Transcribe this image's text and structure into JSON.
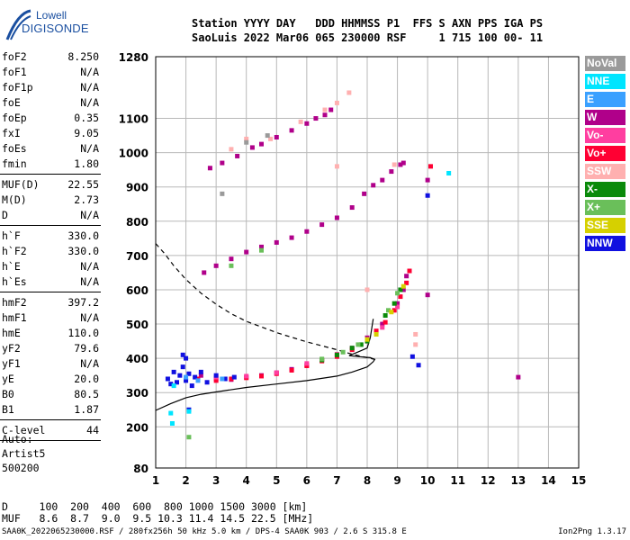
{
  "logo": {
    "line1": "Lowell",
    "line2": "DIGISONDE"
  },
  "header": {
    "line1": "Station YYYY DAY   DDD HHMMSS P1  FFS S AXN PPS IGA PS",
    "line2": "SaoLuis 2022 Mar06 065 230000 RSF     1 715 100 00- 11"
  },
  "params": [
    {
      "label": "foF2",
      "value": "8.250"
    },
    {
      "label": "foF1",
      "value": "N/A"
    },
    {
      "label": "foF1p",
      "value": "N/A"
    },
    {
      "label": "foE",
      "value": "N/A"
    },
    {
      "label": "foEp",
      "value": "0.35"
    },
    {
      "label": "fxI",
      "value": "9.05"
    },
    {
      "label": "foEs",
      "value": "N/A"
    },
    {
      "label": "fmin",
      "value": "1.80",
      "sep": true
    },
    {
      "label": "MUF(D)",
      "value": "22.55"
    },
    {
      "label": "M(D)",
      "value": "2.73"
    },
    {
      "label": "D",
      "value": "N/A",
      "sep": true
    },
    {
      "label": "h`F",
      "value": "330.0"
    },
    {
      "label": "h`F2",
      "value": "330.0"
    },
    {
      "label": "h`E",
      "value": "N/A"
    },
    {
      "label": "h`Es",
      "value": "N/A",
      "sep": true
    },
    {
      "label": "hmF2",
      "value": "397.2"
    },
    {
      "label": "hmF1",
      "value": "N/A"
    },
    {
      "label": "hmE",
      "value": "110.0"
    },
    {
      "label": "yF2",
      "value": "79.6"
    },
    {
      "label": "yF1",
      "value": "N/A"
    },
    {
      "label": "yE",
      "value": "20.0"
    },
    {
      "label": "B0",
      "value": "80.5"
    },
    {
      "label": "B1",
      "value": "1.87",
      "sep": true
    },
    {
      "label": "C-level",
      "value": "44",
      "sep": true
    }
  ],
  "auto": {
    "line1": "Auto:",
    "line2": "Artist5",
    "line3": "500200"
  },
  "bottom": {
    "d_row": "D     100  200  400  600  800 1000 1500 3000 [km]",
    "muf_row": "MUF   8.6  8.7  9.0  9.5 10.3 11.4 14.5 22.5 [MHz]"
  },
  "footer": {
    "left": "SAA0K_2022065230000.RSF / 280fx256h 50 kHz 5.0 km / DPS-4 SAA0K 903 / 2.6 S 315.8 E",
    "right": "Ion2Png 1.3.17"
  },
  "legend": [
    {
      "label": "NoVal",
      "color": "#9a9a9a"
    },
    {
      "label": "NNE",
      "color": "#00e5ff"
    },
    {
      "label": "E",
      "color": "#3aa0ff"
    },
    {
      "label": "W",
      "color": "#b0008a"
    },
    {
      "label": "Vo-",
      "color": "#ff3ea0"
    },
    {
      "label": "Vo+",
      "color": "#ff0033"
    },
    {
      "label": "SSW",
      "color": "#ffb0b0"
    },
    {
      "label": "X-",
      "color": "#0a8a0a"
    },
    {
      "label": "X+",
      "color": "#6abf5a"
    },
    {
      "label": "SSE",
      "color": "#d6d000"
    },
    {
      "label": "NNW",
      "color": "#1010e0"
    }
  ],
  "chart_data": {
    "type": "scatter",
    "xlim": [
      1,
      15
    ],
    "ylim": [
      80,
      1280
    ],
    "x_ticks": [
      1,
      2,
      3,
      4,
      5,
      6,
      7,
      8,
      9,
      10,
      11,
      12,
      13,
      14,
      15
    ],
    "y_ticks": [
      80,
      200,
      300,
      400,
      500,
      600,
      700,
      800,
      900,
      1000,
      1100,
      1280
    ],
    "grid": true,
    "series": [
      {
        "name": "W",
        "color": "#b0008a",
        "points": [
          [
            2.6,
            650
          ],
          [
            3.0,
            670
          ],
          [
            3.5,
            690
          ],
          [
            4.0,
            710
          ],
          [
            4.5,
            725
          ],
          [
            5.0,
            738
          ],
          [
            5.5,
            752
          ],
          [
            6.0,
            770
          ],
          [
            6.5,
            790
          ],
          [
            7.0,
            810
          ],
          [
            7.5,
            840
          ],
          [
            7.9,
            880
          ],
          [
            8.2,
            905
          ],
          [
            8.5,
            920
          ],
          [
            8.8,
            945
          ],
          [
            9.1,
            965
          ],
          [
            9.2,
            970
          ],
          [
            2.8,
            955
          ],
          [
            3.2,
            970
          ],
          [
            3.7,
            990
          ],
          [
            4.2,
            1015
          ],
          [
            4.5,
            1025
          ],
          [
            5.0,
            1045
          ],
          [
            5.5,
            1065
          ],
          [
            6.0,
            1085
          ],
          [
            6.3,
            1100
          ],
          [
            6.6,
            1110
          ],
          [
            6.8,
            1125
          ],
          [
            2.5,
            350
          ],
          [
            3.0,
            340
          ],
          [
            3.5,
            338
          ],
          [
            4.0,
            345
          ],
          [
            4.5,
            350
          ],
          [
            5.0,
            358
          ],
          [
            5.5,
            368
          ],
          [
            6.0,
            380
          ],
          [
            6.5,
            395
          ],
          [
            7.0,
            410
          ],
          [
            7.5,
            430
          ],
          [
            8.0,
            460
          ],
          [
            8.5,
            500
          ],
          [
            9.0,
            560
          ],
          [
            9.2,
            600
          ],
          [
            9.3,
            640
          ],
          [
            10.0,
            585
          ],
          [
            13.0,
            345
          ],
          [
            10.0,
            920
          ]
        ]
      },
      {
        "name": "Vo+",
        "color": "#ff0033",
        "points": [
          [
            2.4,
            340
          ],
          [
            3.0,
            335
          ],
          [
            3.5,
            340
          ],
          [
            4.0,
            343
          ],
          [
            4.5,
            348
          ],
          [
            5.0,
            355
          ],
          [
            5.5,
            365
          ],
          [
            6.0,
            378
          ],
          [
            6.5,
            392
          ],
          [
            7.0,
            405
          ],
          [
            7.5,
            425
          ],
          [
            8.0,
            450
          ],
          [
            8.3,
            480
          ],
          [
            8.6,
            505
          ],
          [
            8.9,
            540
          ],
          [
            9.1,
            580
          ],
          [
            9.3,
            620
          ],
          [
            9.4,
            655
          ],
          [
            10.1,
            960
          ]
        ]
      },
      {
        "name": "Vo-",
        "color": "#ff3ea0",
        "points": [
          [
            3.0,
            345
          ],
          [
            4.0,
            348
          ],
          [
            5.0,
            358
          ],
          [
            6.0,
            385
          ],
          [
            7.0,
            412
          ],
          [
            8.0,
            455
          ],
          [
            8.5,
            490
          ],
          [
            9.0,
            550
          ]
        ]
      },
      {
        "name": "NNW",
        "color": "#1010e0",
        "points": [
          [
            1.4,
            340
          ],
          [
            1.5,
            325
          ],
          [
            1.6,
            360
          ],
          [
            1.7,
            330
          ],
          [
            1.8,
            350
          ],
          [
            1.9,
            375
          ],
          [
            2.0,
            335
          ],
          [
            2.1,
            355
          ],
          [
            2.2,
            320
          ],
          [
            2.3,
            345
          ],
          [
            2.5,
            360
          ],
          [
            2.7,
            330
          ],
          [
            3.0,
            350
          ],
          [
            3.3,
            340
          ],
          [
            3.6,
            345
          ],
          [
            2.0,
            400
          ],
          [
            1.9,
            410
          ],
          [
            2.1,
            250
          ],
          [
            9.5,
            405
          ],
          [
            9.7,
            380
          ],
          [
            10.0,
            875
          ]
        ]
      },
      {
        "name": "X-",
        "color": "#0a8a0a",
        "points": [
          [
            6.5,
            395
          ],
          [
            7.0,
            410
          ],
          [
            7.5,
            430
          ],
          [
            7.8,
            440
          ],
          [
            8.0,
            450
          ],
          [
            8.6,
            525
          ],
          [
            8.9,
            560
          ],
          [
            9.1,
            600
          ]
        ]
      },
      {
        "name": "X+",
        "color": "#6abf5a",
        "points": [
          [
            3.5,
            670
          ],
          [
            4.5,
            715
          ],
          [
            6.5,
            398
          ],
          [
            7.2,
            418
          ],
          [
            7.7,
            440
          ],
          [
            8.7,
            540
          ],
          [
            9.0,
            590
          ],
          [
            2.1,
            170
          ]
        ]
      },
      {
        "name": "SSE",
        "color": "#d6d000",
        "points": [
          [
            8.3,
            470
          ],
          [
            8.8,
            535
          ],
          [
            9.2,
            610
          ],
          [
            8.0,
            455
          ]
        ]
      },
      {
        "name": "NNE",
        "color": "#00e5ff",
        "points": [
          [
            1.5,
            240
          ],
          [
            1.55,
            210
          ],
          [
            2.1,
            245
          ],
          [
            10.7,
            940
          ],
          [
            1.6,
            320
          ]
        ]
      },
      {
        "name": "E",
        "color": "#3aa0ff",
        "points": [
          [
            2.0,
            345
          ],
          [
            2.4,
            335
          ],
          [
            3.2,
            340
          ]
        ]
      },
      {
        "name": "SSW",
        "color": "#ffb0b0",
        "points": [
          [
            8.9,
            965
          ],
          [
            9.6,
            470
          ],
          [
            9.6,
            440
          ],
          [
            3.5,
            1010
          ],
          [
            4.0,
            1040
          ],
          [
            4.8,
            1040
          ],
          [
            5.8,
            1090
          ],
          [
            6.6,
            1125
          ],
          [
            7.0,
            1145
          ],
          [
            7.4,
            1175
          ],
          [
            8.0,
            600
          ],
          [
            7.0,
            960
          ]
        ]
      },
      {
        "name": "NoVal",
        "color": "#9a9a9a",
        "points": [
          [
            3.2,
            880
          ],
          [
            4.0,
            1030
          ],
          [
            4.7,
            1050
          ]
        ]
      }
    ],
    "profile_solid": [
      [
        1.0,
        248
      ],
      [
        1.5,
        268
      ],
      [
        2.0,
        285
      ],
      [
        2.5,
        295
      ],
      [
        3.0,
        302
      ],
      [
        4.0,
        315
      ],
      [
        5.0,
        325
      ],
      [
        6.0,
        335
      ],
      [
        7.0,
        348
      ],
      [
        7.5,
        360
      ],
      [
        8.0,
        375
      ],
      [
        8.2,
        390
      ],
      [
        8.25,
        397
      ],
      [
        8.1,
        402
      ],
      [
        7.7,
        405
      ],
      [
        7.4,
        408
      ],
      [
        7.6,
        415
      ],
      [
        8.0,
        430
      ],
      [
        8.1,
        460
      ],
      [
        8.2,
        515
      ]
    ],
    "profile_dashed": [
      [
        1.0,
        735
      ],
      [
        1.3,
        705
      ],
      [
        1.6,
        670
      ],
      [
        2.0,
        630
      ],
      [
        2.5,
        590
      ],
      [
        3.0,
        558
      ],
      [
        3.5,
        530
      ],
      [
        4.0,
        508
      ],
      [
        5.0,
        475
      ],
      [
        6.0,
        448
      ],
      [
        7.0,
        425
      ],
      [
        7.5,
        412
      ],
      [
        8.0,
        402
      ],
      [
        8.25,
        397
      ]
    ]
  }
}
